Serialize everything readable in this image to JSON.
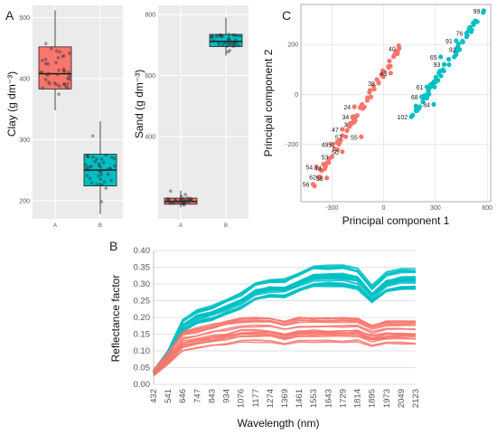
{
  "panels": {
    "a": "A",
    "b": "B",
    "c": "C"
  },
  "chart_data": [
    {
      "panel": "A",
      "type": "box",
      "ylabel": "Clay (g dm⁻³)",
      "categories": [
        "A",
        "B"
      ],
      "ylim": [
        170,
        520
      ],
      "yticks": [
        200,
        300,
        400,
        500
      ],
      "grid": true,
      "boxes": [
        {
          "category": "A",
          "min": 348,
          "q1": 383,
          "median": 408,
          "q3": 452,
          "max": 512,
          "color": "#f8766d"
        },
        {
          "category": "B",
          "min": 178,
          "q1": 224,
          "median": 250,
          "q3": 276,
          "max": 330,
          "color": "#00bfc4"
        }
      ]
    },
    {
      "panel": "A",
      "type": "box",
      "ylabel": "Sand (g dm⁻³)",
      "categories": [
        "A",
        "B"
      ],
      "ylim": [
        130,
        830
      ],
      "yticks": [
        400,
        600,
        800
      ],
      "grid": true,
      "boxes": [
        {
          "category": "A",
          "min": 168,
          "q1": 178,
          "median": 187,
          "q3": 198,
          "max": 222,
          "color": "#f8766d"
        },
        {
          "category": "B",
          "min": 665,
          "q1": 695,
          "median": 712,
          "q3": 735,
          "max": 790,
          "color": "#00bfc4"
        }
      ]
    },
    {
      "panel": "B",
      "type": "line",
      "xlabel": "Wavelength (nm)",
      "ylabel": "Reflectance factor",
      "x_tick_labels": [
        "432",
        "541",
        "646",
        "747",
        "843",
        "934",
        "1076",
        "1177",
        "1274",
        "1369",
        "1461",
        "1553",
        "1643",
        "1729",
        "1814",
        "1895",
        "1973",
        "2049",
        "2123"
      ],
      "ylim": [
        0.0,
        0.4
      ],
      "yticks": [
        "0.00",
        "0.05",
        "0.10",
        "0.15",
        "0.20",
        "0.25",
        "0.30",
        "0.35",
        "0.40"
      ],
      "grid": true,
      "series": [
        {
          "color": "#00bfc4",
          "x": [
            432,
            541,
            646,
            747,
            843,
            934,
            1076,
            1177,
            1274,
            1369,
            1461,
            1553,
            1643,
            1729,
            1814,
            1895,
            1973,
            2049,
            2123
          ],
          "values": [
            0.04,
            0.1,
            0.19,
            0.22,
            0.23,
            0.25,
            0.27,
            0.3,
            0.31,
            0.31,
            0.33,
            0.35,
            0.35,
            0.35,
            0.34,
            0.29,
            0.33,
            0.34,
            0.34
          ]
        },
        {
          "color": "#f8766d",
          "x": [
            432,
            541,
            646,
            747,
            843,
            934,
            1076,
            1177,
            1274,
            1369,
            1461,
            1553,
            1643,
            1729,
            1814,
            1895,
            1973,
            2049,
            2123
          ],
          "values": [
            0.04,
            0.09,
            0.15,
            0.16,
            0.17,
            0.18,
            0.19,
            0.19,
            0.19,
            0.18,
            0.19,
            0.19,
            0.19,
            0.19,
            0.19,
            0.17,
            0.18,
            0.18,
            0.18
          ]
        }
      ]
    },
    {
      "panel": "C",
      "type": "scatter",
      "xlabel": "Principal component 1",
      "ylabel": "Principal component 2",
      "xlim": [
        -480,
        620
      ],
      "ylim": [
        -430,
        360
      ],
      "xticks": [
        -300,
        0,
        300,
        600
      ],
      "yticks": [
        -200,
        0,
        200
      ],
      "grid": true,
      "series": [
        {
          "color": "#f8766d",
          "labels": [
            "40",
            "43",
            "38",
            "24",
            "34",
            "3",
            "47",
            "57",
            "55",
            "49",
            "51",
            "50",
            "53",
            "54",
            "44",
            "62",
            "58",
            "56"
          ],
          "label_x": [
            90,
            40,
            -30,
            -170,
            -180,
            -190,
            -240,
            -220,
            -130,
            -300,
            -260,
            -240,
            -300,
            -390,
            -340,
            -370,
            -330,
            -410
          ],
          "label_y": [
            185,
            85,
            45,
            -50,
            -90,
            -120,
            -140,
            -170,
            -170,
            -200,
            -200,
            -230,
            -250,
            -290,
            -295,
            -330,
            -335,
            -360
          ]
        },
        {
          "color": "#00bfc4",
          "labels": [
            "99",
            "76",
            "91",
            "92",
            "65",
            "93",
            "61",
            "68",
            "84",
            "102"
          ],
          "label_x": [
            580,
            480,
            420,
            440,
            330,
            350,
            250,
            220,
            290,
            160
          ],
          "label_y": [
            335,
            245,
            215,
            180,
            150,
            120,
            30,
            -10,
            -40,
            -90
          ]
        }
      ]
    }
  ]
}
